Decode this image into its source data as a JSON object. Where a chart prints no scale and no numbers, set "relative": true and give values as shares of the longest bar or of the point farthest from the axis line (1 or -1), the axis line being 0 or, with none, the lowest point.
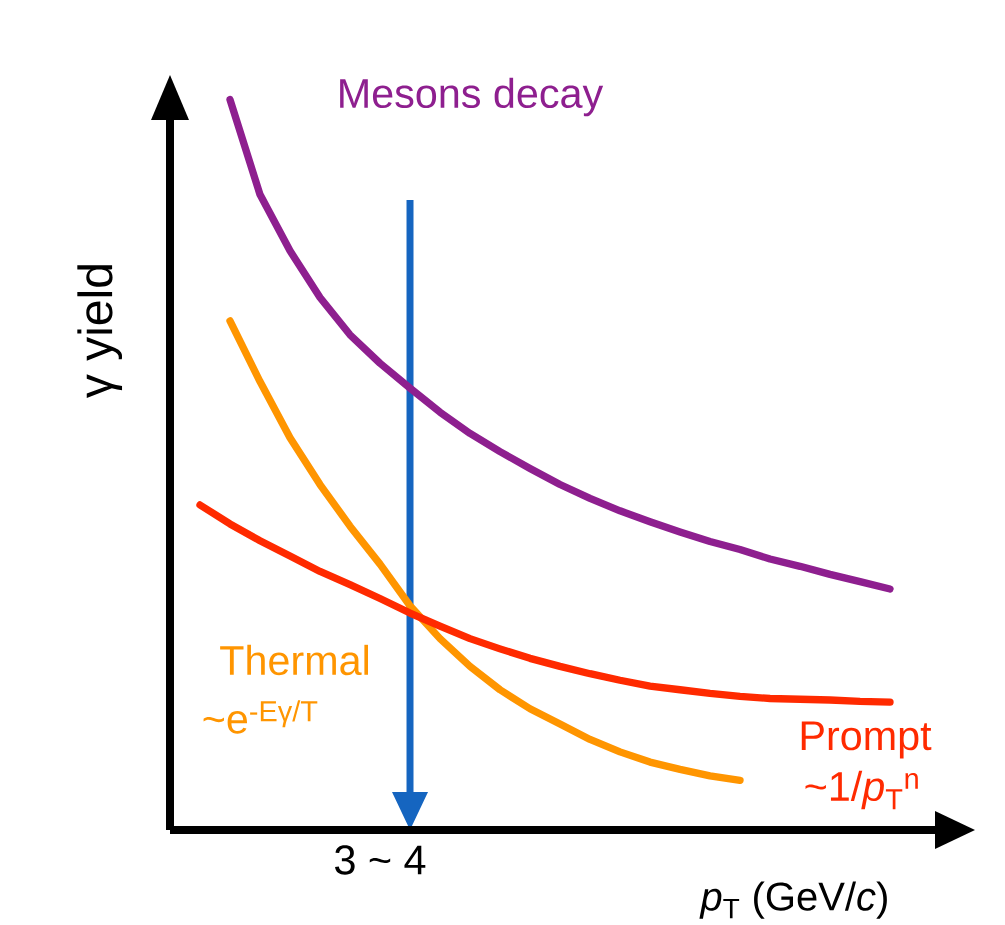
{
  "chart_data": {
    "type": "line",
    "relative": true,
    "xlabel": "*p*$_{T}$ (GeV/*c*)",
    "ylabel": "γ yield",
    "categories": [
      null,
      null,
      null,
      null,
      null,
      null,
      null,
      null,
      null,
      null,
      null,
      null,
      null,
      null,
      null,
      null,
      null,
      null,
      null,
      null,
      null,
      null,
      null,
      null
    ],
    "series": [
      {
        "name": "Mesons decay",
        "color": "#8e1f8f",
        "values": [
          null,
          1.0,
          0.87,
          0.793,
          0.729,
          0.678,
          0.639,
          0.605,
          0.572,
          0.543,
          0.518,
          0.495,
          0.473,
          0.454,
          0.437,
          0.422,
          0.408,
          0.395,
          0.384,
          0.371,
          0.361,
          0.35,
          0.34,
          0.33
        ]
      },
      {
        "name": "Thermal",
        "color": "#ff9500",
        "values": [
          null,
          0.697,
          0.614,
          0.537,
          0.473,
          0.416,
          0.364,
          0.307,
          0.262,
          0.224,
          0.192,
          0.166,
          0.145,
          0.124,
          0.107,
          0.093,
          0.083,
          0.074,
          0.068,
          null,
          null,
          null,
          null,
          null
        ]
      },
      {
        "name": "Prompt",
        "color": "#ff2a00",
        "values": [
          0.445,
          0.419,
          0.396,
          0.375,
          0.354,
          0.336,
          0.317,
          0.297,
          0.279,
          0.262,
          0.248,
          0.235,
          0.224,
          0.214,
          0.205,
          0.197,
          0.192,
          0.187,
          0.183,
          0.18,
          0.179,
          0.178,
          0.176,
          0.175
        ]
      }
    ],
    "annotations": [
      "~e$^{-Eγ/T}$",
      "~1/*p*$_{T}$$^{n}$",
      "3 ~ 4"
    ],
    "legend": false,
    "marker": "none",
    "line_style": "solid"
  }
}
